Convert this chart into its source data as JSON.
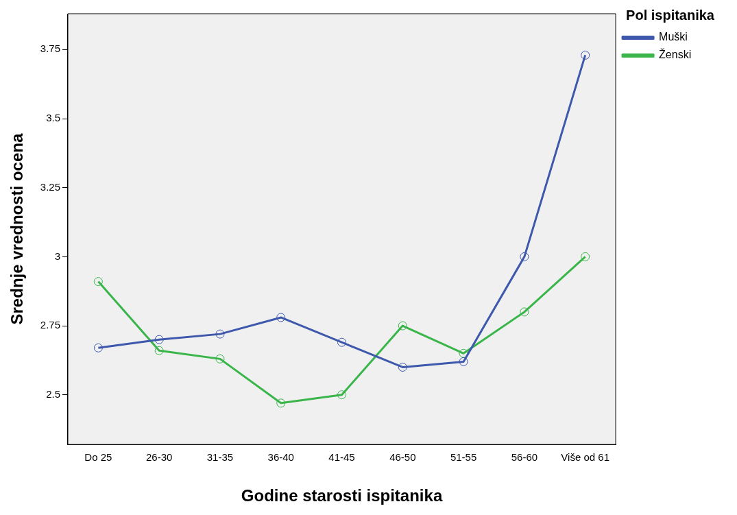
{
  "chart_data": {
    "type": "line",
    "xlabel": "Godine starosti ispitanika",
    "ylabel": "Srednje vrednosti ocena",
    "legend_title": "Pol ispitanika",
    "categories": [
      "Do 25",
      "26-30",
      "31-35",
      "36-40",
      "41-45",
      "46-50",
      "51-55",
      "56-60",
      "Više od 61"
    ],
    "series": [
      {
        "name": "Muški",
        "color": "#3e58ac",
        "values": [
          2.67,
          2.7,
          2.72,
          2.78,
          2.69,
          2.6,
          2.62,
          3.0,
          3.73
        ]
      },
      {
        "name": "Ženski",
        "color": "#39b54a",
        "values": [
          2.91,
          2.66,
          2.63,
          2.47,
          2.5,
          2.75,
          2.65,
          2.8,
          3.0
        ]
      }
    ],
    "ylim": [
      2.32,
      3.88
    ],
    "yticks": [
      2.5,
      2.75,
      3,
      3.25,
      3.5,
      3.75
    ],
    "grid": false,
    "legend": "top right",
    "marker": "circle",
    "line_style": "solid"
  }
}
